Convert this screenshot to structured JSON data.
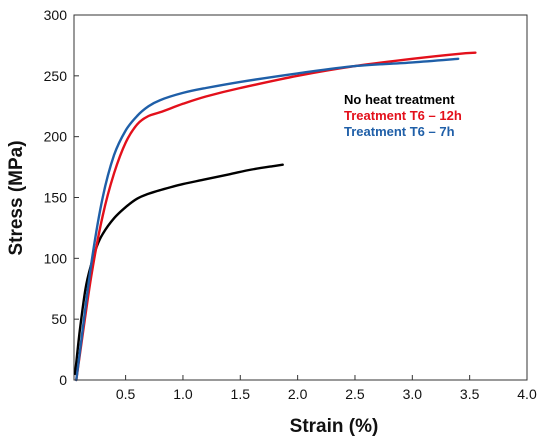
{
  "chart_data": {
    "type": "line",
    "title": "",
    "xlabel": "Strain (%)",
    "ylabel": "Stress (MPa)",
    "xlim": [
      0.05,
      4.0
    ],
    "ylim": [
      0,
      300
    ],
    "x_ticks": [
      "0.5",
      "1.0",
      "1.5",
      "2.0",
      "2.5",
      "3.0",
      "3.5",
      "4.0"
    ],
    "y_ticks": [
      "0",
      "50",
      "100",
      "150",
      "200",
      "250",
      "300"
    ],
    "grid": false,
    "legend_placement": "right",
    "series": [
      {
        "name": "No heat treatment",
        "color": "#000000",
        "points": [
          [
            0.06,
            5
          ],
          [
            0.1,
            40
          ],
          [
            0.15,
            75
          ],
          [
            0.2,
            95
          ],
          [
            0.25,
            110
          ],
          [
            0.3,
            120
          ],
          [
            0.4,
            133
          ],
          [
            0.5,
            142
          ],
          [
            0.6,
            149
          ],
          [
            0.7,
            153
          ],
          [
            0.8,
            156
          ],
          [
            1.0,
            161
          ],
          [
            1.2,
            165
          ],
          [
            1.4,
            169
          ],
          [
            1.6,
            173
          ],
          [
            1.8,
            176
          ],
          [
            1.87,
            177
          ]
        ]
      },
      {
        "name": "Treatment T6 – 12h",
        "color": "#e3101b",
        "points": [
          [
            0.07,
            0
          ],
          [
            0.1,
            20
          ],
          [
            0.2,
            85
          ],
          [
            0.3,
            135
          ],
          [
            0.4,
            170
          ],
          [
            0.5,
            195
          ],
          [
            0.6,
            210
          ],
          [
            0.7,
            217
          ],
          [
            0.8,
            220
          ],
          [
            1.0,
            227
          ],
          [
            1.2,
            233
          ],
          [
            1.5,
            240
          ],
          [
            2.0,
            250
          ],
          [
            2.5,
            258
          ],
          [
            3.0,
            264
          ],
          [
            3.4,
            268
          ],
          [
            3.55,
            269
          ]
        ]
      },
      {
        "name": "Treatment T6 – 7h",
        "color": "#1f5fa8",
        "points": [
          [
            0.07,
            0
          ],
          [
            0.1,
            22
          ],
          [
            0.2,
            95
          ],
          [
            0.3,
            150
          ],
          [
            0.4,
            185
          ],
          [
            0.5,
            205
          ],
          [
            0.6,
            217
          ],
          [
            0.7,
            225
          ],
          [
            0.8,
            230
          ],
          [
            1.0,
            236
          ],
          [
            1.2,
            240
          ],
          [
            1.5,
            245
          ],
          [
            2.0,
            252
          ],
          [
            2.5,
            258
          ],
          [
            3.0,
            261
          ],
          [
            3.4,
            264
          ]
        ]
      }
    ]
  }
}
